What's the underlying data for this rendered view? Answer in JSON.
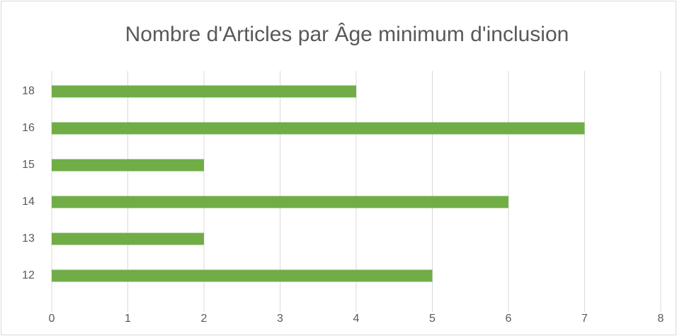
{
  "chart_data": {
    "type": "bar",
    "orientation": "horizontal",
    "title": "Nombre d'Articles par Âge minimum d'inclusion",
    "categories": [
      "12",
      "13",
      "14",
      "15",
      "16",
      "18"
    ],
    "values": [
      5,
      2,
      6,
      2,
      7,
      4
    ],
    "color": "#70ad47",
    "xlim": [
      0,
      8
    ],
    "xticks": [
      0,
      1,
      2,
      3,
      4,
      5,
      6,
      7,
      8
    ],
    "grid": true
  }
}
